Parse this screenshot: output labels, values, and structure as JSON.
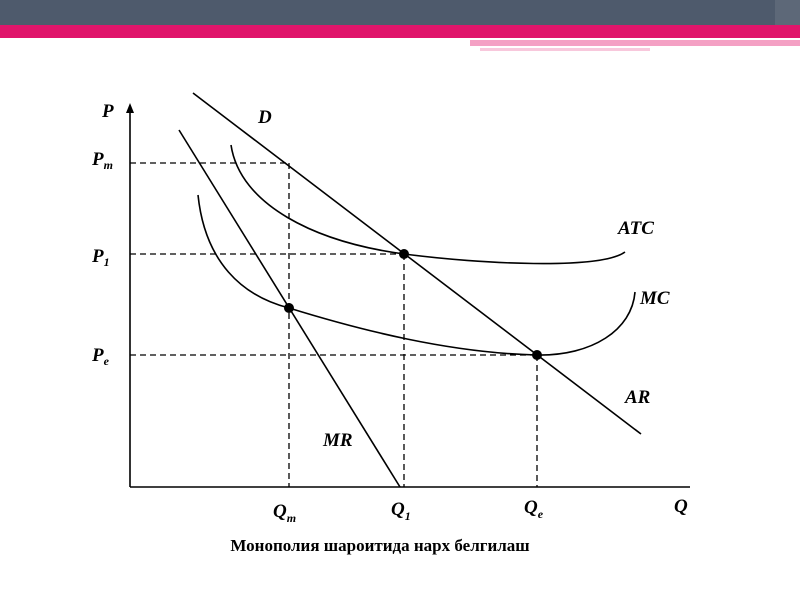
{
  "axes": {
    "y_label": "P",
    "x_label": "Q"
  },
  "price_levels": [
    {
      "main": "P",
      "sub": "m"
    },
    {
      "main": "P",
      "sub": "1"
    },
    {
      "main": "P",
      "sub": "e"
    }
  ],
  "quantity_levels": [
    {
      "main": "Q",
      "sub": "m"
    },
    {
      "main": "Q",
      "sub": "1"
    },
    {
      "main": "Q",
      "sub": "e"
    }
  ],
  "curve_labels": {
    "demand": "D",
    "average_total_cost": "ATC",
    "marginal_cost": "MC",
    "average_revenue": "AR",
    "marginal_revenue": "MR"
  },
  "caption": "Монополия шароитида  нарх белгилаш"
}
